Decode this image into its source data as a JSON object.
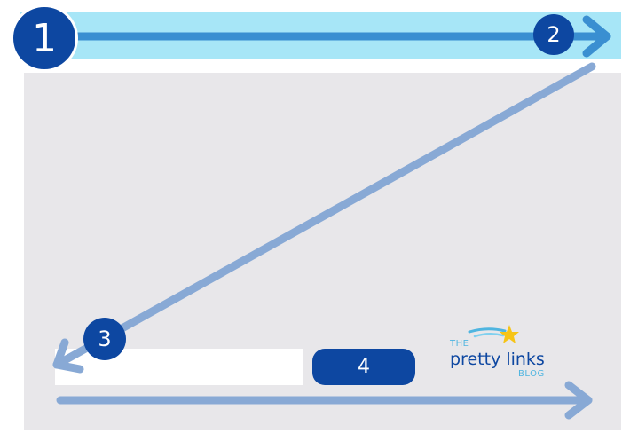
{
  "steps": {
    "step1": "1",
    "step2": "2",
    "step3": "3",
    "step4": "4"
  },
  "logo": {
    "the": "THE",
    "name": "pretty links",
    "blog": "BLOG"
  },
  "colors": {
    "header": "#a7e6f7",
    "panel": "#e8e7ea",
    "badge": "#0d47a1",
    "arrow_dark": "#3a8fd1",
    "arrow_light": "#88a9d5",
    "star": "#f6c416"
  }
}
